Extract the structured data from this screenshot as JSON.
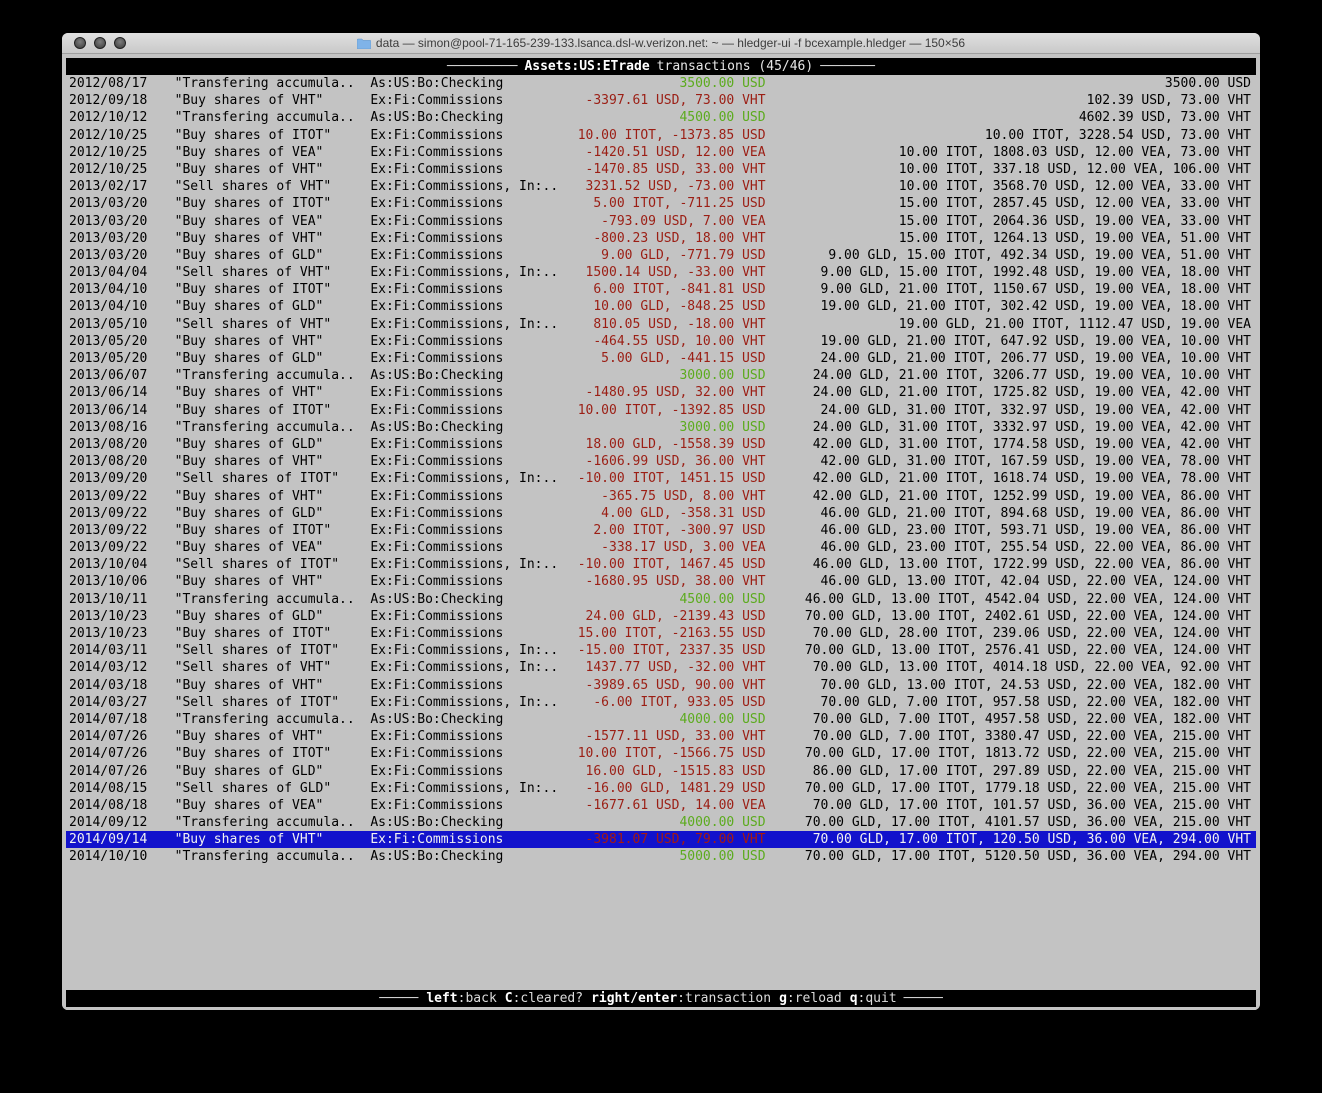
{
  "window": {
    "title": "data — simon@pool-71-165-239-133.lsanca.dsl-w.verizon.net: ~ — hledger-ui -f bcexample.hledger — 150×56",
    "folder_icon": "folder-icon",
    "folder_color": "#7fb3e8",
    "buttons": [
      "close",
      "minimize",
      "zoom"
    ]
  },
  "header": {
    "dashes_left": "─────────",
    "account": "Assets:US:ETrade",
    "rest": "transactions (45/46)",
    "dashes_right": "───────"
  },
  "statusbar": {
    "dashes_left": "─────",
    "dashes_right": "─────",
    "keys": [
      {
        "key": "left",
        "desc": ":back"
      },
      {
        "key": "C",
        "desc": ":cleared?"
      },
      {
        "key": "right/enter",
        "desc": ":transaction"
      },
      {
        "key": "g",
        "desc": ":reload"
      },
      {
        "key": "q",
        "desc": ":quit"
      }
    ]
  },
  "colors": {
    "selection_bg": "#1212cc",
    "amount_negative": "#9b1e14",
    "amount_positive": "#5cab1e",
    "terminal_bg": "#c3c3c3",
    "bar_bg": "#000000"
  },
  "transactions": [
    {
      "date": "2012/08/17",
      "description": "\"Transfering accumula..",
      "account": "As:US:Bo:Checking",
      "amount": "3500.00 USD",
      "amount_color": "green",
      "balance": "3500.00 USD"
    },
    {
      "date": "2012/09/18",
      "description": "\"Buy shares of VHT\"",
      "account": "Ex:Fi:Commissions",
      "amount": "-3397.61 USD, 73.00 VHT",
      "amount_color": "red",
      "balance": "102.39 USD, 73.00 VHT"
    },
    {
      "date": "2012/10/12",
      "description": "\"Transfering accumula..",
      "account": "As:US:Bo:Checking",
      "amount": "4500.00 USD",
      "amount_color": "green",
      "balance": "4602.39 USD, 73.00 VHT"
    },
    {
      "date": "2012/10/25",
      "description": "\"Buy shares of ITOT\"",
      "account": "Ex:Fi:Commissions",
      "amount": "10.00 ITOT, -1373.85 USD",
      "amount_color": "red",
      "balance": "10.00 ITOT, 3228.54 USD, 73.00 VHT"
    },
    {
      "date": "2012/10/25",
      "description": "\"Buy shares of VEA\"",
      "account": "Ex:Fi:Commissions",
      "amount": "-1420.51 USD, 12.00 VEA",
      "amount_color": "red",
      "balance": "10.00 ITOT, 1808.03 USD, 12.00 VEA, 73.00 VHT"
    },
    {
      "date": "2012/10/25",
      "description": "\"Buy shares of VHT\"",
      "account": "Ex:Fi:Commissions",
      "amount": "-1470.85 USD, 33.00 VHT",
      "amount_color": "red",
      "balance": "10.00 ITOT, 337.18 USD, 12.00 VEA, 106.00 VHT"
    },
    {
      "date": "2013/02/17",
      "description": "\"Sell shares of VHT\"",
      "account": "Ex:Fi:Commissions, In:..",
      "amount": "3231.52 USD, -73.00 VHT",
      "amount_color": "red",
      "balance": "10.00 ITOT, 3568.70 USD, 12.00 VEA, 33.00 VHT"
    },
    {
      "date": "2013/03/20",
      "description": "\"Buy shares of ITOT\"",
      "account": "Ex:Fi:Commissions",
      "amount": "5.00 ITOT, -711.25 USD",
      "amount_color": "red",
      "balance": "15.00 ITOT, 2857.45 USD, 12.00 VEA, 33.00 VHT"
    },
    {
      "date": "2013/03/20",
      "description": "\"Buy shares of VEA\"",
      "account": "Ex:Fi:Commissions",
      "amount": "-793.09 USD, 7.00 VEA",
      "amount_color": "red",
      "balance": "15.00 ITOT, 2064.36 USD, 19.00 VEA, 33.00 VHT"
    },
    {
      "date": "2013/03/20",
      "description": "\"Buy shares of VHT\"",
      "account": "Ex:Fi:Commissions",
      "amount": "-800.23 USD, 18.00 VHT",
      "amount_color": "red",
      "balance": "15.00 ITOT, 1264.13 USD, 19.00 VEA, 51.00 VHT"
    },
    {
      "date": "2013/03/20",
      "description": "\"Buy shares of GLD\"",
      "account": "Ex:Fi:Commissions",
      "amount": "9.00 GLD, -771.79 USD",
      "amount_color": "red",
      "balance": "9.00 GLD, 15.00 ITOT, 492.34 USD, 19.00 VEA, 51.00 VHT"
    },
    {
      "date": "2013/04/04",
      "description": "\"Sell shares of VHT\"",
      "account": "Ex:Fi:Commissions, In:..",
      "amount": "1500.14 USD, -33.00 VHT",
      "amount_color": "red",
      "balance": "9.00 GLD, 15.00 ITOT, 1992.48 USD, 19.00 VEA, 18.00 VHT"
    },
    {
      "date": "2013/04/10",
      "description": "\"Buy shares of ITOT\"",
      "account": "Ex:Fi:Commissions",
      "amount": "6.00 ITOT, -841.81 USD",
      "amount_color": "red",
      "balance": "9.00 GLD, 21.00 ITOT, 1150.67 USD, 19.00 VEA, 18.00 VHT"
    },
    {
      "date": "2013/04/10",
      "description": "\"Buy shares of GLD\"",
      "account": "Ex:Fi:Commissions",
      "amount": "10.00 GLD, -848.25 USD",
      "amount_color": "red",
      "balance": "19.00 GLD, 21.00 ITOT, 302.42 USD, 19.00 VEA, 18.00 VHT"
    },
    {
      "date": "2013/05/10",
      "description": "\"Sell shares of VHT\"",
      "account": "Ex:Fi:Commissions, In:..",
      "amount": "810.05 USD, -18.00 VHT",
      "amount_color": "red",
      "balance": "19.00 GLD, 21.00 ITOT, 1112.47 USD, 19.00 VEA"
    },
    {
      "date": "2013/05/20",
      "description": "\"Buy shares of VHT\"",
      "account": "Ex:Fi:Commissions",
      "amount": "-464.55 USD, 10.00 VHT",
      "amount_color": "red",
      "balance": "19.00 GLD, 21.00 ITOT, 647.92 USD, 19.00 VEA, 10.00 VHT"
    },
    {
      "date": "2013/05/20",
      "description": "\"Buy shares of GLD\"",
      "account": "Ex:Fi:Commissions",
      "amount": "5.00 GLD, -441.15 USD",
      "amount_color": "red",
      "balance": "24.00 GLD, 21.00 ITOT, 206.77 USD, 19.00 VEA, 10.00 VHT"
    },
    {
      "date": "2013/06/07",
      "description": "\"Transfering accumula..",
      "account": "As:US:Bo:Checking",
      "amount": "3000.00 USD",
      "amount_color": "green",
      "balance": "24.00 GLD, 21.00 ITOT, 3206.77 USD, 19.00 VEA, 10.00 VHT"
    },
    {
      "date": "2013/06/14",
      "description": "\"Buy shares of VHT\"",
      "account": "Ex:Fi:Commissions",
      "amount": "-1480.95 USD, 32.00 VHT",
      "amount_color": "red",
      "balance": "24.00 GLD, 21.00 ITOT, 1725.82 USD, 19.00 VEA, 42.00 VHT"
    },
    {
      "date": "2013/06/14",
      "description": "\"Buy shares of ITOT\"",
      "account": "Ex:Fi:Commissions",
      "amount": "10.00 ITOT, -1392.85 USD",
      "amount_color": "red",
      "balance": "24.00 GLD, 31.00 ITOT, 332.97 USD, 19.00 VEA, 42.00 VHT"
    },
    {
      "date": "2013/08/16",
      "description": "\"Transfering accumula..",
      "account": "As:US:Bo:Checking",
      "amount": "3000.00 USD",
      "amount_color": "green",
      "balance": "24.00 GLD, 31.00 ITOT, 3332.97 USD, 19.00 VEA, 42.00 VHT"
    },
    {
      "date": "2013/08/20",
      "description": "\"Buy shares of GLD\"",
      "account": "Ex:Fi:Commissions",
      "amount": "18.00 GLD, -1558.39 USD",
      "amount_color": "red",
      "balance": "42.00 GLD, 31.00 ITOT, 1774.58 USD, 19.00 VEA, 42.00 VHT"
    },
    {
      "date": "2013/08/20",
      "description": "\"Buy shares of VHT\"",
      "account": "Ex:Fi:Commissions",
      "amount": "-1606.99 USD, 36.00 VHT",
      "amount_color": "red",
      "balance": "42.00 GLD, 31.00 ITOT, 167.59 USD, 19.00 VEA, 78.00 VHT"
    },
    {
      "date": "2013/09/20",
      "description": "\"Sell shares of ITOT\"",
      "account": "Ex:Fi:Commissions, In:..",
      "amount": "-10.00 ITOT, 1451.15 USD",
      "amount_color": "red",
      "balance": "42.00 GLD, 21.00 ITOT, 1618.74 USD, 19.00 VEA, 78.00 VHT"
    },
    {
      "date": "2013/09/22",
      "description": "\"Buy shares of VHT\"",
      "account": "Ex:Fi:Commissions",
      "amount": "-365.75 USD, 8.00 VHT",
      "amount_color": "red",
      "balance": "42.00 GLD, 21.00 ITOT, 1252.99 USD, 19.00 VEA, 86.00 VHT"
    },
    {
      "date": "2013/09/22",
      "description": "\"Buy shares of GLD\"",
      "account": "Ex:Fi:Commissions",
      "amount": "4.00 GLD, -358.31 USD",
      "amount_color": "red",
      "balance": "46.00 GLD, 21.00 ITOT, 894.68 USD, 19.00 VEA, 86.00 VHT"
    },
    {
      "date": "2013/09/22",
      "description": "\"Buy shares of ITOT\"",
      "account": "Ex:Fi:Commissions",
      "amount": "2.00 ITOT, -300.97 USD",
      "amount_color": "red",
      "balance": "46.00 GLD, 23.00 ITOT, 593.71 USD, 19.00 VEA, 86.00 VHT"
    },
    {
      "date": "2013/09/22",
      "description": "\"Buy shares of VEA\"",
      "account": "Ex:Fi:Commissions",
      "amount": "-338.17 USD, 3.00 VEA",
      "amount_color": "red",
      "balance": "46.00 GLD, 23.00 ITOT, 255.54 USD, 22.00 VEA, 86.00 VHT"
    },
    {
      "date": "2013/10/04",
      "description": "\"Sell shares of ITOT\"",
      "account": "Ex:Fi:Commissions, In:..",
      "amount": "-10.00 ITOT, 1467.45 USD",
      "amount_color": "red",
      "balance": "46.00 GLD, 13.00 ITOT, 1722.99 USD, 22.00 VEA, 86.00 VHT"
    },
    {
      "date": "2013/10/06",
      "description": "\"Buy shares of VHT\"",
      "account": "Ex:Fi:Commissions",
      "amount": "-1680.95 USD, 38.00 VHT",
      "amount_color": "red",
      "balance": "46.00 GLD, 13.00 ITOT, 42.04 USD, 22.00 VEA, 124.00 VHT"
    },
    {
      "date": "2013/10/11",
      "description": "\"Transfering accumula..",
      "account": "As:US:Bo:Checking",
      "amount": "4500.00 USD",
      "amount_color": "green",
      "balance": "46.00 GLD, 13.00 ITOT, 4542.04 USD, 22.00 VEA, 124.00 VHT"
    },
    {
      "date": "2013/10/23",
      "description": "\"Buy shares of GLD\"",
      "account": "Ex:Fi:Commissions",
      "amount": "24.00 GLD, -2139.43 USD",
      "amount_color": "red",
      "balance": "70.00 GLD, 13.00 ITOT, 2402.61 USD, 22.00 VEA, 124.00 VHT"
    },
    {
      "date": "2013/10/23",
      "description": "\"Buy shares of ITOT\"",
      "account": "Ex:Fi:Commissions",
      "amount": "15.00 ITOT, -2163.55 USD",
      "amount_color": "red",
      "balance": "70.00 GLD, 28.00 ITOT, 239.06 USD, 22.00 VEA, 124.00 VHT"
    },
    {
      "date": "2014/03/11",
      "description": "\"Sell shares of ITOT\"",
      "account": "Ex:Fi:Commissions, In:..",
      "amount": "-15.00 ITOT, 2337.35 USD",
      "amount_color": "red",
      "balance": "70.00 GLD, 13.00 ITOT, 2576.41 USD, 22.00 VEA, 124.00 VHT"
    },
    {
      "date": "2014/03/12",
      "description": "\"Sell shares of VHT\"",
      "account": "Ex:Fi:Commissions, In:..",
      "amount": "1437.77 USD, -32.00 VHT",
      "amount_color": "red",
      "balance": "70.00 GLD, 13.00 ITOT, 4014.18 USD, 22.00 VEA, 92.00 VHT"
    },
    {
      "date": "2014/03/18",
      "description": "\"Buy shares of VHT\"",
      "account": "Ex:Fi:Commissions",
      "amount": "-3989.65 USD, 90.00 VHT",
      "amount_color": "red",
      "balance": "70.00 GLD, 13.00 ITOT, 24.53 USD, 22.00 VEA, 182.00 VHT"
    },
    {
      "date": "2014/03/27",
      "description": "\"Sell shares of ITOT\"",
      "account": "Ex:Fi:Commissions, In:..",
      "amount": "-6.00 ITOT, 933.05 USD",
      "amount_color": "red",
      "balance": "70.00 GLD, 7.00 ITOT, 957.58 USD, 22.00 VEA, 182.00 VHT"
    },
    {
      "date": "2014/07/18",
      "description": "\"Transfering accumula..",
      "account": "As:US:Bo:Checking",
      "amount": "4000.00 USD",
      "amount_color": "green",
      "balance": "70.00 GLD, 7.00 ITOT, 4957.58 USD, 22.00 VEA, 182.00 VHT"
    },
    {
      "date": "2014/07/26",
      "description": "\"Buy shares of VHT\"",
      "account": "Ex:Fi:Commissions",
      "amount": "-1577.11 USD, 33.00 VHT",
      "amount_color": "red",
      "balance": "70.00 GLD, 7.00 ITOT, 3380.47 USD, 22.00 VEA, 215.00 VHT"
    },
    {
      "date": "2014/07/26",
      "description": "\"Buy shares of ITOT\"",
      "account": "Ex:Fi:Commissions",
      "amount": "10.00 ITOT, -1566.75 USD",
      "amount_color": "red",
      "balance": "70.00 GLD, 17.00 ITOT, 1813.72 USD, 22.00 VEA, 215.00 VHT"
    },
    {
      "date": "2014/07/26",
      "description": "\"Buy shares of GLD\"",
      "account": "Ex:Fi:Commissions",
      "amount": "16.00 GLD, -1515.83 USD",
      "amount_color": "red",
      "balance": "86.00 GLD, 17.00 ITOT, 297.89 USD, 22.00 VEA, 215.00 VHT"
    },
    {
      "date": "2014/08/15",
      "description": "\"Sell shares of GLD\"",
      "account": "Ex:Fi:Commissions, In:..",
      "amount": "-16.00 GLD, 1481.29 USD",
      "amount_color": "red",
      "balance": "70.00 GLD, 17.00 ITOT, 1779.18 USD, 22.00 VEA, 215.00 VHT"
    },
    {
      "date": "2014/08/18",
      "description": "\"Buy shares of VEA\"",
      "account": "Ex:Fi:Commissions",
      "amount": "-1677.61 USD, 14.00 VEA",
      "amount_color": "red",
      "balance": "70.00 GLD, 17.00 ITOT, 101.57 USD, 36.00 VEA, 215.00 VHT"
    },
    {
      "date": "2014/09/12",
      "description": "\"Transfering accumula..",
      "account": "As:US:Bo:Checking",
      "amount": "4000.00 USD",
      "amount_color": "green",
      "balance": "70.00 GLD, 17.00 ITOT, 4101.57 USD, 36.00 VEA, 215.00 VHT"
    },
    {
      "date": "2014/09/14",
      "description": "\"Buy shares of VHT\"",
      "account": "Ex:Fi:Commissions",
      "amount": "-3981.07 USD, 79.00 VHT",
      "amount_color": "red",
      "balance": "70.00 GLD, 17.00 ITOT, 120.50 USD, 36.00 VEA, 294.00 VHT",
      "selected": true
    },
    {
      "date": "2014/10/10",
      "description": "\"Transfering accumula..",
      "account": "As:US:Bo:Checking",
      "amount": "5000.00 USD",
      "amount_color": "green",
      "balance": "70.00 GLD, 17.00 ITOT, 5120.50 USD, 36.00 VEA, 294.00 VHT"
    }
  ]
}
